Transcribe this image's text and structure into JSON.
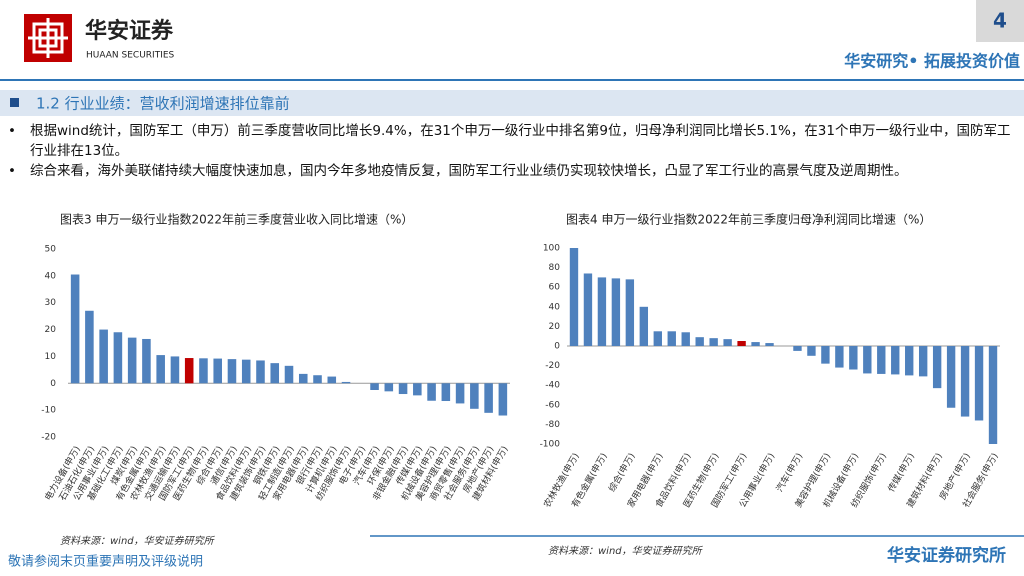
{
  "header": {
    "brand": "华安证券",
    "brand_en": "HUAAN SECURITIES",
    "page": "4",
    "slogan": "华安研究• 拓展投资价值"
  },
  "section": "1.2 行业业绩：营收利润增速排位靠前",
  "bullets": [
    "根据wind统计，国防军工（申万）前三季度营收同比增长9.4%，在31个申万一级行业中排名第9位，归母净利润同比增长5.1%，在31个申万一级行业中，国防军工行业排在13位。",
    "综合来看，海外美联储持续大幅度快速加息，国内今年多地疫情反复，国防军工行业业绩仍实现较快增长，凸显了军工行业的高景气度及逆周期性。"
  ],
  "chart_data": [
    {
      "type": "bar",
      "title": "图表3 申万一级行业指数2022年前三季度营业收入同比增速（%）",
      "source": "资料来源：wind，华安证券研究所",
      "categories": [
        "电力设备(申万)",
        "石油石化(申万)",
        "公用事业(申万)",
        "基础化工(申万)",
        "煤炭(申万)",
        "有色金属(申万)",
        "农林牧渔(申万)",
        "交通运输(申万)",
        "国防军工(申万)",
        "医药生物(申万)",
        "综合(申万)",
        "通信(申万)",
        "食品饮料(申万)",
        "建筑装饰(申万)",
        "钢铁(申万)",
        "轻工制造(申万)",
        "家用电器(申万)",
        "银行(申万)",
        "计算机(申万)",
        "纺织服饰(申万)",
        "电子(申万)",
        "汽车(申万)",
        "环保(申万)",
        "非银金融(申万)",
        "传媒(申万)",
        "机械设备(申万)",
        "美容护理(申万)",
        "商贸零售(申万)",
        "社会服务(申万)",
        "房地产(申万)",
        "建筑材料(申万)"
      ],
      "series": [
        {
          "values": [
            40.5,
            27,
            20,
            19,
            17,
            16.5,
            10.5,
            10,
            9.4,
            9.3,
            9.2,
            9,
            8.8,
            8.5,
            7.5,
            6.5,
            3.5,
            3,
            2.5,
            0.5,
            0,
            -2.5,
            -3,
            -4,
            -4.5,
            -6.5,
            -6.6,
            -7.5,
            -9.5,
            -11,
            -12
          ],
          "colors": [
            "#4f81bd",
            "#4f81bd",
            "#4f81bd",
            "#4f81bd",
            "#4f81bd",
            "#4f81bd",
            "#4f81bd",
            "#4f81bd",
            "#c00000",
            "#4f81bd",
            "#4f81bd",
            "#4f81bd",
            "#4f81bd",
            "#4f81bd",
            "#4f81bd",
            "#4f81bd",
            "#4f81bd",
            "#4f81bd",
            "#4f81bd",
            "#4f81bd",
            "#4f81bd",
            "#4f81bd",
            "#4f81bd",
            "#4f81bd",
            "#4f81bd",
            "#4f81bd",
            "#4f81bd",
            "#4f81bd",
            "#4f81bd",
            "#4f81bd",
            "#4f81bd"
          ]
        }
      ],
      "ylim": [
        -20,
        50
      ],
      "yticks": [
        -20,
        -10,
        0,
        10,
        20,
        30,
        40,
        50
      ]
    },
    {
      "type": "bar",
      "title": "图表4 申万一级行业指数2022年前三季度归母净利润同比增速（%）",
      "source": "资料来源：wind，华安证券研究所",
      "categories": [
        "农林牧渔(申万)",
        null,
        "有色金属(申万)",
        null,
        "综合(申万)",
        null,
        "家用电器(申万)",
        null,
        "食品饮料(申万)",
        null,
        "医药生物(申万)",
        null,
        "国防军工(申万)",
        null,
        "公用事业(申万)",
        null,
        "汽车(申万)",
        null,
        "美容护理(申万)",
        null,
        "机械设备(申万)",
        null,
        "纺织服饰(申万)",
        null,
        "传媒(申万)",
        null,
        "建筑材料(申万)",
        null,
        "房地产(申万)",
        null,
        "社会服务(申万)"
      ],
      "series": [
        {
          "values": [
            100,
            74,
            70,
            69,
            68,
            40,
            15,
            15,
            14,
            9,
            8,
            7,
            5.1,
            4,
            3,
            0,
            -5,
            -10,
            -18,
            -22,
            -24,
            -28,
            -28.5,
            -29,
            -30,
            -31,
            -43,
            -63,
            -72,
            -76,
            -100
          ],
          "colors": [
            "#4f81bd",
            "#4f81bd",
            "#4f81bd",
            "#4f81bd",
            "#4f81bd",
            "#4f81bd",
            "#4f81bd",
            "#4f81bd",
            "#4f81bd",
            "#4f81bd",
            "#4f81bd",
            "#4f81bd",
            "#c00000",
            "#4f81bd",
            "#4f81bd",
            "#4f81bd",
            "#4f81bd",
            "#4f81bd",
            "#4f81bd",
            "#4f81bd",
            "#4f81bd",
            "#4f81bd",
            "#4f81bd",
            "#4f81bd",
            "#4f81bd",
            "#4f81bd",
            "#4f81bd",
            "#4f81bd",
            "#4f81bd",
            "#4f81bd",
            "#4f81bd"
          ]
        }
      ],
      "ylim": [
        -100,
        100
      ],
      "yticks": [
        -100,
        -80,
        -60,
        -40,
        -20,
        0,
        20,
        40,
        60,
        80,
        100
      ]
    }
  ],
  "footer": {
    "disclaimer": "敬请参阅末页重要声明及评级说明",
    "institute": "华安证券研究所"
  }
}
